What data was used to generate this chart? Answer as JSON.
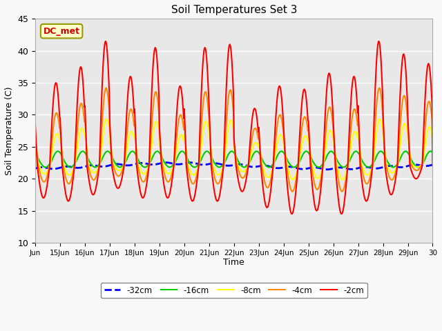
{
  "title": "Soil Temperatures Set 3",
  "xlabel": "Time",
  "ylabel": "Soil Temperature (C)",
  "ylim": [
    10,
    45
  ],
  "yticks": [
    10,
    15,
    20,
    25,
    30,
    35,
    40,
    45
  ],
  "annotation": "DC_met",
  "fig_facecolor": "#f8f8f8",
  "plot_facecolor": "#e8e8e8",
  "series": {
    "-32cm": {
      "color": "#0000ff",
      "linewidth": 2.0,
      "linestyle": "--"
    },
    "-16cm": {
      "color": "#00cc00",
      "linewidth": 1.5,
      "linestyle": "-"
    },
    "-8cm": {
      "color": "#ffff00",
      "linewidth": 1.5,
      "linestyle": "-"
    },
    "-4cm": {
      "color": "#ff8800",
      "linewidth": 1.5,
      "linestyle": "-"
    },
    "-2cm": {
      "color": "#ff0000",
      "linewidth": 1.5,
      "linestyle": "-"
    }
  },
  "xtick_days": [
    14,
    15,
    16,
    17,
    18,
    19,
    20,
    21,
    22,
    23,
    24,
    25,
    26,
    27,
    28,
    29,
    30
  ],
  "xtick_labels": [
    "Jun",
    "15Jun",
    "16Jun",
    "17Jun",
    "18Jun",
    "19Jun",
    "20Jun",
    "21Jun",
    "22Jun",
    "23Jun",
    "24Jun",
    "25Jun",
    "26Jun",
    "27Jun",
    "28Jun",
    "29Jun",
    "30"
  ]
}
